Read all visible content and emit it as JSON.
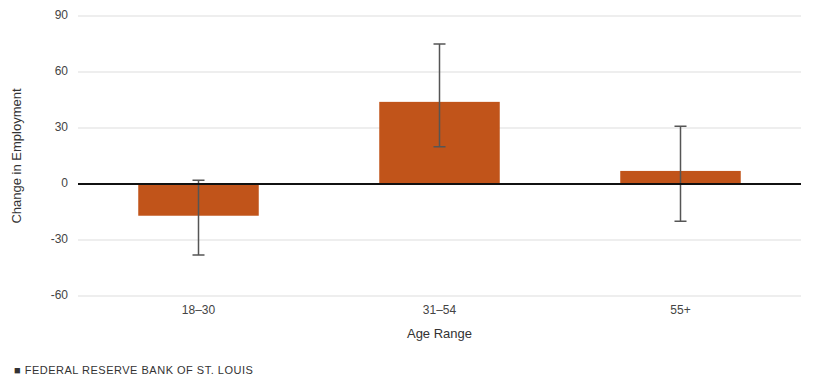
{
  "chart_data": {
    "type": "bar",
    "categories": [
      "18–30",
      "31–54",
      "55+"
    ],
    "values": [
      -17,
      44,
      7
    ],
    "error_lower": [
      21,
      24,
      27
    ],
    "error_upper": [
      19,
      31,
      24
    ],
    "color": "#c1541a",
    "xlabel": "Age Range",
    "ylabel": "Change in Employment",
    "ylim": [
      -60,
      90
    ],
    "yticks": [
      -60,
      -30,
      0,
      30,
      60,
      90
    ],
    "grid": true,
    "footer": "■  FEDERAL RESERVE BANK OF ST. LOUIS"
  }
}
